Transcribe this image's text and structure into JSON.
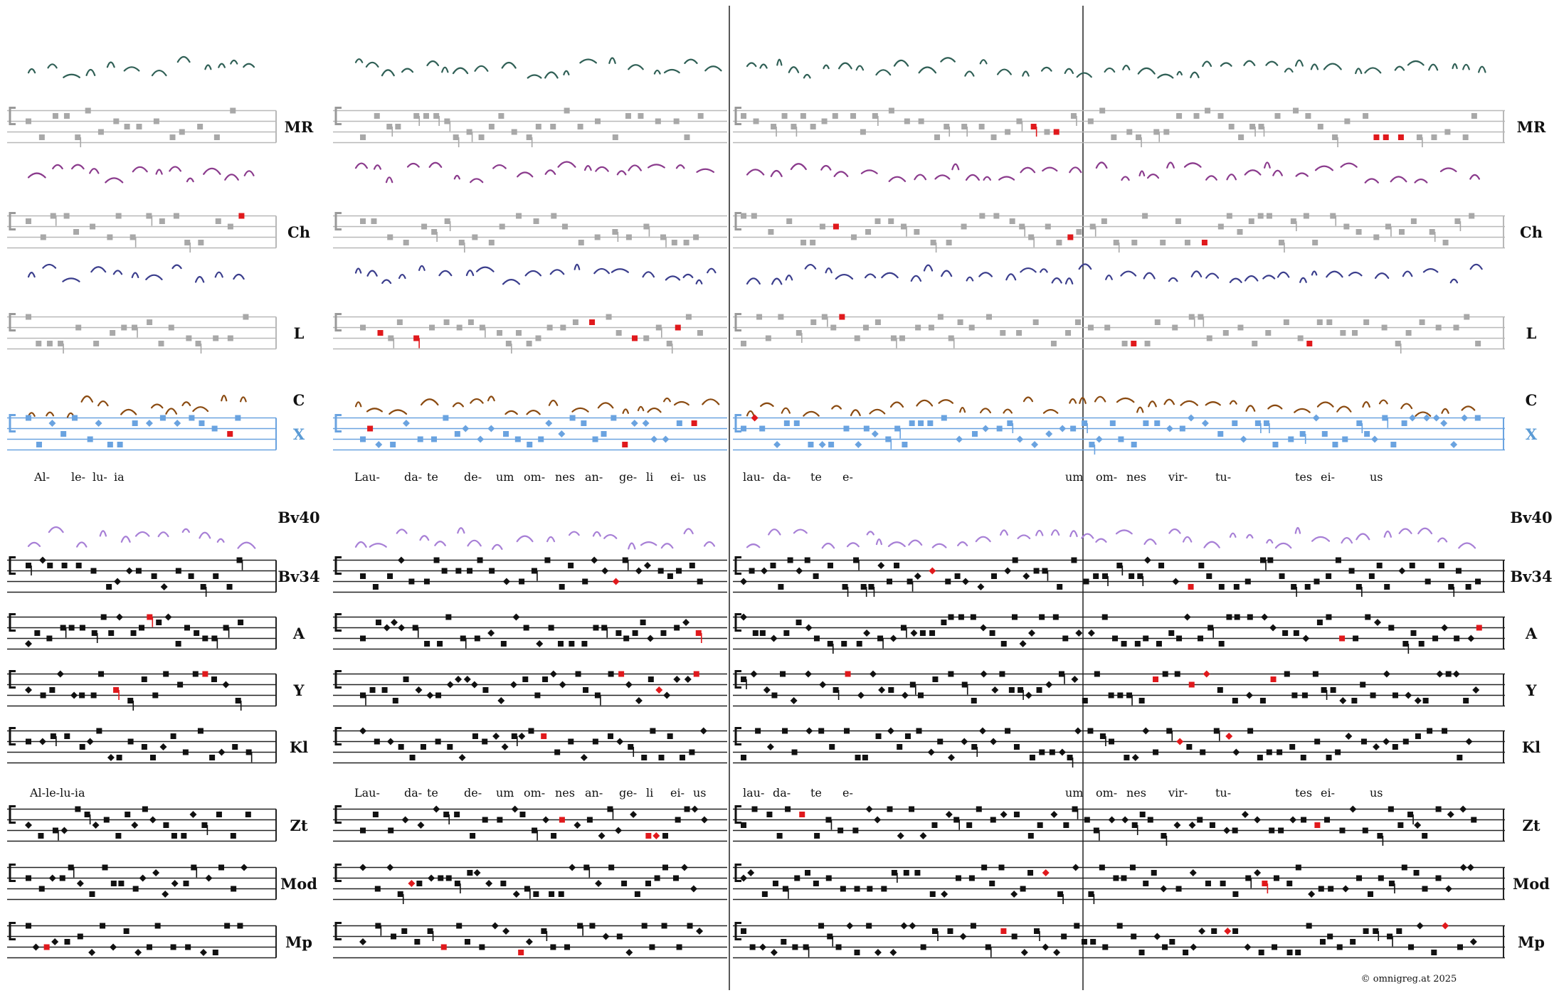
{
  "colors": {
    "black": "#111111",
    "grey": "#a8a8a8",
    "red": "#e0191c",
    "blue_x": "#6aa3e0",
    "green_ms": "#2f5f55",
    "magenta_ms": "#8a3a8c",
    "navy_ms": "#3a3d8c",
    "brown_ms": "#8a4a10",
    "lilac_ms": "#a77fd6",
    "green_accent": "#4a8a6a"
  },
  "rows": [
    {
      "id": "MR",
      "label": "MR",
      "y": 178,
      "style": "grey",
      "scan": "green_ms"
    },
    {
      "id": "Ch",
      "label": "Ch",
      "y": 326,
      "style": "grey",
      "scan": "magenta_ms"
    },
    {
      "id": "L",
      "label": "L",
      "y": 468,
      "style": "grey",
      "scan": "navy_ms"
    },
    {
      "id": "C",
      "label": "C",
      "y": 0,
      "style": "label-only",
      "scan": "brown_ms"
    },
    {
      "id": "X",
      "label": "X",
      "y": 610,
      "style": "blue",
      "scan": ""
    },
    {
      "id": "Bv40",
      "label": "Bv40",
      "y": 0,
      "style": "label-only",
      "scan": "lilac_ms"
    },
    {
      "id": "Bv34",
      "label": "Bv34",
      "y": 810,
      "style": "black",
      "scan": ""
    },
    {
      "id": "A",
      "label": "A",
      "y": 890,
      "style": "black",
      "scan": ""
    },
    {
      "id": "Y",
      "label": "Y",
      "y": 970,
      "style": "black",
      "scan": ""
    },
    {
      "id": "Kl",
      "label": "Kl",
      "y": 1050,
      "style": "black",
      "scan": ""
    },
    {
      "id": "Zt",
      "label": "Zt",
      "y": 1160,
      "style": "black",
      "scan": ""
    },
    {
      "id": "Mod",
      "label": "Mod",
      "y": 1242,
      "style": "black",
      "scan": ""
    },
    {
      "id": "Mp",
      "label": "Mp",
      "y": 1324,
      "style": "black",
      "scan": ""
    }
  ],
  "lyrics_top": [
    "Al-",
    "le-",
    "lu-",
    "ia",
    "Lau-",
    "da-",
    "te",
    "de-",
    "um",
    "om-",
    "nes",
    "an-",
    "ge-",
    "li",
    "ei-",
    "us",
    "lau-",
    "da-",
    "te",
    "e-",
    "um",
    "om-",
    "nes",
    "vir-",
    "tu-",
    "tes",
    "ei-",
    "us"
  ],
  "lyrics_bottom": [
    "Al-le-lu-ia",
    "Lau-",
    "da-",
    "te",
    "de-",
    "um",
    "om-",
    "nes",
    "an-",
    "ge-",
    "li",
    "ei-",
    "us",
    "lau-",
    "da-",
    "te",
    "e-",
    "um",
    "om-",
    "nes",
    "vir-",
    "tu-",
    "tes",
    "ei-",
    "us"
  ],
  "copyright": "©  omnigreg.at   2025"
}
